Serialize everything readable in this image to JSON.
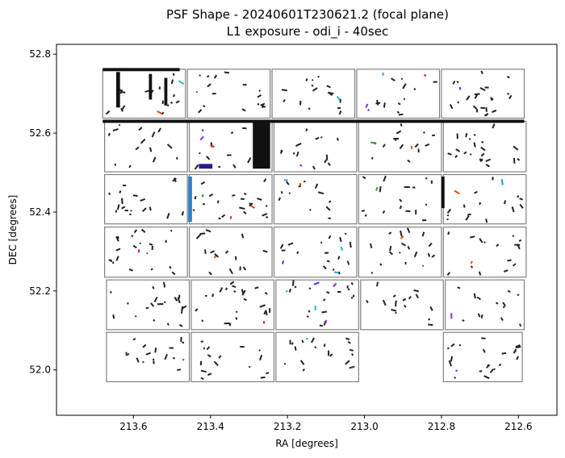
{
  "chart_data": {
    "type": "scatter",
    "title_line1": "PSF Shape - 20240601T230621.2 (focal plane)",
    "title_line2": "L1 exposure - odi_i - 40sec",
    "xlabel": "RA [degrees]",
    "ylabel": "DEC [degrees]",
    "xlim": [
      213.8,
      212.5
    ],
    "ylim": [
      51.885,
      52.825
    ],
    "x_ticks": [
      213.6,
      213.4,
      213.2,
      213.0,
      212.8,
      212.6
    ],
    "y_ticks": [
      52.0,
      52.2,
      52.4,
      52.6,
      52.8
    ],
    "x_tick_labels": [
      "213.6",
      "213.4",
      "213.2",
      "213.0",
      "212.8",
      "212.6"
    ],
    "y_tick_labels": [
      "52.0",
      "52.2",
      "52.4",
      "52.6",
      "52.8"
    ],
    "grid": false,
    "chips": [
      {
        "ra0": 213.68,
        "ra1": 213.465,
        "dec0": 52.638,
        "dec1": 52.762
      },
      {
        "ra0": 213.46,
        "ra1": 213.245,
        "dec0": 52.638,
        "dec1": 52.762
      },
      {
        "ra0": 213.24,
        "ra1": 213.025,
        "dec0": 52.638,
        "dec1": 52.762
      },
      {
        "ra0": 213.02,
        "ra1": 212.805,
        "dec0": 52.638,
        "dec1": 52.762
      },
      {
        "ra0": 212.8,
        "ra1": 212.585,
        "dec0": 52.638,
        "dec1": 52.762
      },
      {
        "ra0": 213.675,
        "ra1": 213.46,
        "dec0": 52.502,
        "dec1": 52.63
      },
      {
        "ra0": 213.455,
        "ra1": 213.24,
        "dec0": 52.502,
        "dec1": 52.63
      },
      {
        "ra0": 213.235,
        "ra1": 213.02,
        "dec0": 52.502,
        "dec1": 52.63
      },
      {
        "ra0": 213.015,
        "ra1": 212.8,
        "dec0": 52.502,
        "dec1": 52.63
      },
      {
        "ra0": 212.795,
        "ra1": 212.58,
        "dec0": 52.502,
        "dec1": 52.63
      },
      {
        "ra0": 213.675,
        "ra1": 213.46,
        "dec0": 52.37,
        "dec1": 52.495
      },
      {
        "ra0": 213.455,
        "ra1": 213.24,
        "dec0": 52.37,
        "dec1": 52.495
      },
      {
        "ra0": 213.235,
        "ra1": 213.02,
        "dec0": 52.37,
        "dec1": 52.495
      },
      {
        "ra0": 213.015,
        "ra1": 212.8,
        "dec0": 52.37,
        "dec1": 52.495
      },
      {
        "ra0": 212.795,
        "ra1": 212.58,
        "dec0": 52.37,
        "dec1": 52.495
      },
      {
        "ra0": 213.675,
        "ra1": 213.46,
        "dec0": 52.235,
        "dec1": 52.362
      },
      {
        "ra0": 213.455,
        "ra1": 213.24,
        "dec0": 52.235,
        "dec1": 52.362
      },
      {
        "ra0": 213.235,
        "ra1": 213.02,
        "dec0": 52.235,
        "dec1": 52.362
      },
      {
        "ra0": 213.015,
        "ra1": 212.8,
        "dec0": 52.235,
        "dec1": 52.362
      },
      {
        "ra0": 212.795,
        "ra1": 212.58,
        "dec0": 52.235,
        "dec1": 52.362
      },
      {
        "ra0": 213.67,
        "ra1": 213.455,
        "dec0": 52.102,
        "dec1": 52.228
      },
      {
        "ra0": 213.45,
        "ra1": 213.235,
        "dec0": 52.102,
        "dec1": 52.228
      },
      {
        "ra0": 213.23,
        "ra1": 213.015,
        "dec0": 52.102,
        "dec1": 52.228
      },
      {
        "ra0": 213.01,
        "ra1": 212.795,
        "dec0": 52.102,
        "dec1": 52.228
      },
      {
        "ra0": 212.79,
        "ra1": 212.585,
        "dec0": 52.102,
        "dec1": 52.228
      },
      {
        "ra0": 213.67,
        "ra1": 213.455,
        "dec0": 51.97,
        "dec1": 52.095
      },
      {
        "ra0": 213.45,
        "ra1": 213.235,
        "dec0": 51.97,
        "dec1": 52.095
      },
      {
        "ra0": 213.23,
        "ra1": 213.015,
        "dec0": 51.97,
        "dec1": 52.095
      },
      {
        "ra0": 212.795,
        "ra1": 212.59,
        "dec0": 51.97,
        "dec1": 52.095
      }
    ],
    "highlights": [
      {
        "ra0": 213.645,
        "ra1": 213.635,
        "dec0": 52.665,
        "dec1": 52.755,
        "color": "#111111"
      },
      {
        "ra0": 213.56,
        "ra1": 213.552,
        "dec0": 52.685,
        "dec1": 52.75,
        "color": "#111111"
      },
      {
        "ra0": 213.52,
        "ra1": 213.512,
        "dec0": 52.67,
        "dec1": 52.74,
        "color": "#111111"
      },
      {
        "ra0": 213.68,
        "ra1": 213.48,
        "dec0": 52.757,
        "dec1": 52.765,
        "color": "#111111"
      },
      {
        "ra0": 213.68,
        "ra1": 212.585,
        "dec0": 52.626,
        "dec1": 52.634,
        "color": "#111111"
      },
      {
        "ra0": 213.29,
        "ra1": 213.245,
        "dec0": 52.51,
        "dec1": 52.63,
        "color": "#111111"
      },
      {
        "ra0": 213.43,
        "ra1": 213.395,
        "dec0": 52.51,
        "dec1": 52.522,
        "color": "#2a1a8a"
      },
      {
        "ra0": 213.458,
        "ra1": 213.448,
        "dec0": 52.375,
        "dec1": 52.49,
        "color": "#2f7fd0"
      },
      {
        "ra0": 212.8,
        "ra1": 212.792,
        "dec0": 52.41,
        "dec1": 52.49,
        "color": "#111111"
      }
    ],
    "stick_length_deg": 0.012,
    "stick_seed": 20240601,
    "stick_colors": [
      "#222222",
      "#222222",
      "#222222",
      "#222222",
      "#222222",
      "#333333",
      "#3a3adf",
      "#1f9fd8",
      "#2ca02c",
      "#ff4500",
      "#8a2be2",
      "#d62728",
      "#17becf"
    ]
  }
}
